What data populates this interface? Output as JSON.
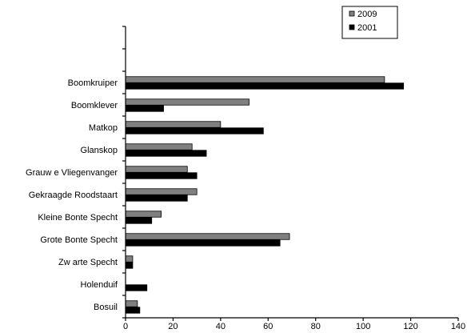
{
  "chart_data": {
    "type": "bar",
    "orientation": "horizontal",
    "categories": [
      "Boomkruiper",
      "Boomklever",
      "Matkop",
      "Glanskop",
      "Grauw e Vliegenvanger",
      "Gekraagde Roodstaart",
      "Kleine Bonte Specht",
      "Grote Bonte Specht",
      "Zw arte Specht",
      "Holenduif",
      "Bosuil"
    ],
    "series": [
      {
        "name": "2009",
        "color": "#808080",
        "values": [
          109,
          52,
          40,
          28,
          26,
          30,
          15,
          69,
          3,
          0,
          5
        ]
      },
      {
        "name": "2001",
        "color": "#000000",
        "values": [
          117,
          16,
          58,
          34,
          30,
          26,
          11,
          65,
          3,
          9,
          6
        ]
      }
    ],
    "xlim": [
      0,
      140
    ],
    "xticks": [
      0,
      20,
      40,
      60,
      80,
      100,
      120,
      140
    ],
    "empty_slots_top": 2,
    "grid": false,
    "legend_position": "top-right",
    "title": "",
    "xlabel": "",
    "ylabel": ""
  }
}
